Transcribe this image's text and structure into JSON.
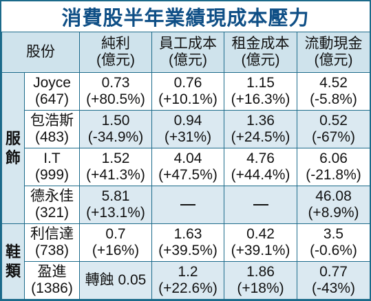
{
  "title": "消費股半年業績現成本壓力",
  "header": {
    "stock": "股份",
    "cols": [
      {
        "line1": "純利",
        "line2": "(億元)"
      },
      {
        "line1": "員工成本",
        "line2": "(億元)"
      },
      {
        "line1": "租金成本",
        "line2": "(億元)"
      },
      {
        "line1": "流動現金",
        "line2": "(億元)"
      }
    ]
  },
  "groups": {
    "apparel": {
      "c1": "服",
      "c2": "飾"
    },
    "shoes": {
      "c1": "鞋",
      "c2": "類"
    }
  },
  "rows": [
    {
      "name": "Joyce",
      "code": "(647)",
      "cells": [
        {
          "v": "0.73",
          "c": "(+80.5%)"
        },
        {
          "v": "0.76",
          "c": "(+10.1%)"
        },
        {
          "v": "1.15",
          "c": "(+16.3%)"
        },
        {
          "v": "4.52",
          "c": "(-5.8%)"
        }
      ]
    },
    {
      "name": "包浩斯",
      "code": "(483)",
      "cells": [
        {
          "v": "1.50",
          "c": "(-34.9%)"
        },
        {
          "v": "0.94",
          "c": "(+31%)"
        },
        {
          "v": "1.36",
          "c": "(+24.5%)"
        },
        {
          "v": "0.52",
          "c": "(-67%)"
        }
      ]
    },
    {
      "name": "I.T",
      "code": "(999)",
      "cells": [
        {
          "v": "1.52",
          "c": "(+41.3%)"
        },
        {
          "v": "4.04",
          "c": "(+47.5%)"
        },
        {
          "v": "4.76",
          "c": "(+44.4%)"
        },
        {
          "v": "6.06",
          "c": "(-21.8%)"
        }
      ]
    },
    {
      "name": "德永佳",
      "code": "(321)",
      "cells": [
        {
          "v": "5.81",
          "c": "(+13.1%)"
        },
        {
          "v": "",
          "c": ""
        },
        {
          "v": "",
          "c": ""
        },
        {
          "v": "46.08",
          "c": "(+8.9%)"
        }
      ]
    },
    {
      "name": "利信達",
      "code": "(738)",
      "cells": [
        {
          "v": "0.7",
          "c": "(+16%)"
        },
        {
          "v": "1.63",
          "c": "(+39.5%)"
        },
        {
          "v": "0.42",
          "c": "(+39.1%)"
        },
        {
          "v": "3.5",
          "c": "(-0.6%)"
        }
      ]
    },
    {
      "name": "盈進",
      "code": "(1386)",
      "cells": [
        {
          "v": "轉蝕 0.05",
          "c": ""
        },
        {
          "v": "1.2",
          "c": "(+22.6%)"
        },
        {
          "v": "1.86",
          "c": "(+18%)"
        },
        {
          "v": "0.77",
          "c": "(-43%)"
        }
      ]
    }
  ]
}
